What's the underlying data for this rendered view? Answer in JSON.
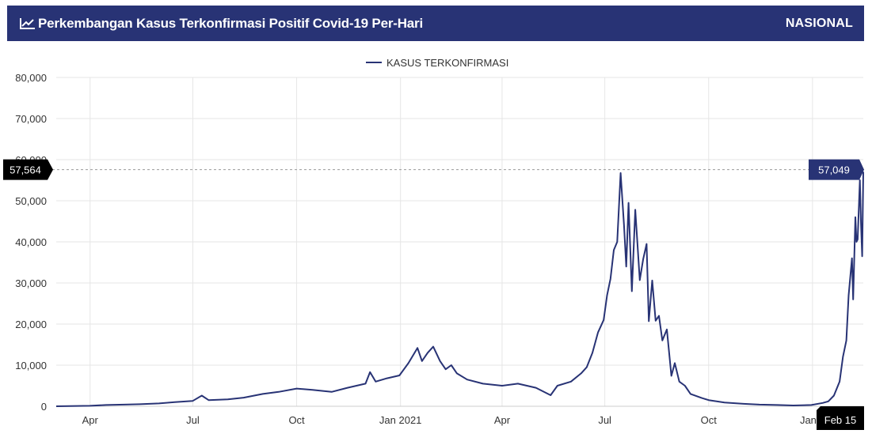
{
  "header": {
    "title": "Perkembangan Kasus Terkonfirmasi Positif Covid-19 Per-Hari",
    "scope": "NASIONAL",
    "title_icon": "line-chart-icon",
    "background_color": "#283375"
  },
  "colors": {
    "series_line": "#283375",
    "grid": "#e6e6e6",
    "axis_text": "#333333",
    "crosshair": "#999999",
    "tooltip_value_bg": "#283375",
    "tooltip_axis_bg": "#000000"
  },
  "chart_data": {
    "type": "line",
    "title": "Perkembangan Kasus Terkonfirmasi Positif Covid-19 Per-Hari",
    "legend_position": "top-center",
    "grid": true,
    "ylim": [
      0,
      80000
    ],
    "yticks": [
      "0",
      "10,000",
      "20,000",
      "30,000",
      "40,000",
      "50,000",
      "60,000",
      "70,000",
      "80,000"
    ],
    "xlim": [
      "2020-03-02",
      "2022-02-15"
    ],
    "xticks": [
      {
        "label": "Apr",
        "date": "2020-04-01"
      },
      {
        "label": "Jul",
        "date": "2020-07-01"
      },
      {
        "label": "Oct",
        "date": "2020-10-01"
      },
      {
        "label": "Jan 2021",
        "date": "2021-01-01"
      },
      {
        "label": "Apr",
        "date": "2021-04-01"
      },
      {
        "label": "Jul",
        "date": "2021-07-01"
      },
      {
        "label": "Oct",
        "date": "2021-10-01"
      },
      {
        "label": "Jan 2",
        "date": "2022-01-01"
      }
    ],
    "series": [
      {
        "name": "KASUS TERKONFIRMASI",
        "color": "#283375",
        "points": [
          [
            "2020-03-02",
            0
          ],
          [
            "2020-03-20",
            80
          ],
          [
            "2020-04-01",
            120
          ],
          [
            "2020-04-15",
            300
          ],
          [
            "2020-05-01",
            400
          ],
          [
            "2020-05-15",
            500
          ],
          [
            "2020-06-01",
            700
          ],
          [
            "2020-06-15",
            1000
          ],
          [
            "2020-07-01",
            1300
          ],
          [
            "2020-07-09",
            2600
          ],
          [
            "2020-07-15",
            1500
          ],
          [
            "2020-08-01",
            1700
          ],
          [
            "2020-08-15",
            2100
          ],
          [
            "2020-09-01",
            3000
          ],
          [
            "2020-09-15",
            3500
          ],
          [
            "2020-10-01",
            4300
          ],
          [
            "2020-10-15",
            4000
          ],
          [
            "2020-11-01",
            3500
          ],
          [
            "2020-11-15",
            4500
          ],
          [
            "2020-12-01",
            5500
          ],
          [
            "2020-12-05",
            8300
          ],
          [
            "2020-12-10",
            6000
          ],
          [
            "2020-12-20",
            6800
          ],
          [
            "2020-12-31",
            7500
          ],
          [
            "2021-01-08",
            10500
          ],
          [
            "2021-01-16",
            14200
          ],
          [
            "2021-01-20",
            11000
          ],
          [
            "2021-01-25",
            13000
          ],
          [
            "2021-01-30",
            14500
          ],
          [
            "2021-02-05",
            11000
          ],
          [
            "2021-02-10",
            9000
          ],
          [
            "2021-02-15",
            10000
          ],
          [
            "2021-02-20",
            8000
          ],
          [
            "2021-03-01",
            6500
          ],
          [
            "2021-03-15",
            5500
          ],
          [
            "2021-04-01",
            5000
          ],
          [
            "2021-04-15",
            5500
          ],
          [
            "2021-05-01",
            4500
          ],
          [
            "2021-05-14",
            2700
          ],
          [
            "2021-05-20",
            5000
          ],
          [
            "2021-06-01",
            6000
          ],
          [
            "2021-06-10",
            8000
          ],
          [
            "2021-06-15",
            9500
          ],
          [
            "2021-06-20",
            13000
          ],
          [
            "2021-06-25",
            18000
          ],
          [
            "2021-06-30",
            21000
          ],
          [
            "2021-07-03",
            27000
          ],
          [
            "2021-07-06",
            31000
          ],
          [
            "2021-07-09",
            38000
          ],
          [
            "2021-07-12",
            40000
          ],
          [
            "2021-07-15",
            56757
          ],
          [
            "2021-07-18",
            44000
          ],
          [
            "2021-07-20",
            34000
          ],
          [
            "2021-07-22",
            49500
          ],
          [
            "2021-07-25",
            28000
          ],
          [
            "2021-07-28",
            47800
          ],
          [
            "2021-08-01",
            30700
          ],
          [
            "2021-08-04",
            35800
          ],
          [
            "2021-08-07",
            39500
          ],
          [
            "2021-08-09",
            20700
          ],
          [
            "2021-08-12",
            30600
          ],
          [
            "2021-08-15",
            20800
          ],
          [
            "2021-08-18",
            22000
          ],
          [
            "2021-08-21",
            16000
          ],
          [
            "2021-08-25",
            18700
          ],
          [
            "2021-08-29",
            7400
          ],
          [
            "2021-09-01",
            10500
          ],
          [
            "2021-09-05",
            6000
          ],
          [
            "2021-09-10",
            5000
          ],
          [
            "2021-09-15",
            3000
          ],
          [
            "2021-09-25",
            2000
          ],
          [
            "2021-10-01",
            1500
          ],
          [
            "2021-10-15",
            900
          ],
          [
            "2021-11-01",
            600
          ],
          [
            "2021-11-15",
            400
          ],
          [
            "2021-12-01",
            300
          ],
          [
            "2021-12-15",
            200
          ],
          [
            "2021-12-31",
            300
          ],
          [
            "2022-01-10",
            800
          ],
          [
            "2022-01-15",
            1200
          ],
          [
            "2022-01-20",
            2600
          ],
          [
            "2022-01-25",
            6000
          ],
          [
            "2022-01-28",
            12000
          ],
          [
            "2022-01-31",
            16000
          ],
          [
            "2022-02-02",
            27000
          ],
          [
            "2022-02-04",
            33000
          ],
          [
            "2022-02-05",
            36000
          ],
          [
            "2022-02-06",
            26000
          ],
          [
            "2022-02-08",
            46000
          ],
          [
            "2022-02-09",
            40000
          ],
          [
            "2022-02-10",
            40600
          ],
          [
            "2022-02-12",
            55000
          ],
          [
            "2022-02-13",
            44500
          ],
          [
            "2022-02-14",
            36500
          ],
          [
            "2022-02-15",
            57049
          ]
        ]
      }
    ],
    "crosshair": {
      "y_value": 57564,
      "y_label": "57,564",
      "x_date": "2022-02-15",
      "x_label": "Feb 15",
      "value_label": "57,049"
    }
  }
}
